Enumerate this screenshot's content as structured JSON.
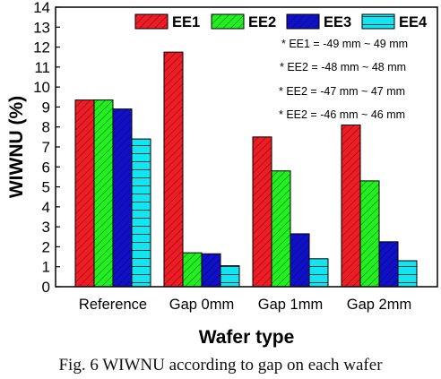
{
  "figure_caption": "Fig. 6 WIWNU according to gap on each wafer",
  "chart_data": {
    "type": "bar",
    "xlabel": "Wafer type",
    "ylabel": "WIWNU (%)",
    "ylim": [
      0,
      14
    ],
    "yticks": [
      0,
      1,
      2,
      3,
      4,
      5,
      6,
      7,
      8,
      9,
      10,
      11,
      12,
      13,
      14
    ],
    "categories": [
      "Reference",
      "Gap 0mm",
      "Gap 1mm",
      "Gap 2mm"
    ],
    "grid": false,
    "legend_position": "top-right",
    "series": [
      {
        "name": "EE1",
        "color": "#ee1c24",
        "pattern": "diagonal-hatch",
        "values": [
          9.35,
          11.75,
          7.5,
          8.1
        ]
      },
      {
        "name": "EE2",
        "color": "#22ee22",
        "pattern": "diagonal-hatch",
        "values": [
          9.35,
          1.7,
          5.8,
          5.3
        ]
      },
      {
        "name": "EE3",
        "color": "#1010c8",
        "pattern": "diagonal-hatch",
        "values": [
          8.9,
          1.65,
          2.65,
          2.25
        ]
      },
      {
        "name": "EE4",
        "color": "#14e4f0",
        "pattern": "horizontal-lines",
        "values": [
          7.4,
          1.05,
          1.4,
          1.3
        ]
      }
    ],
    "annotations": [
      "* EE1 = -49 mm ~ 49 mm",
      "* EE2 = -48 mm ~ 48 mm",
      "* EE2 = -47 mm ~ 47 mm",
      "* EE2 = -46 mm ~ 46 mm"
    ]
  }
}
